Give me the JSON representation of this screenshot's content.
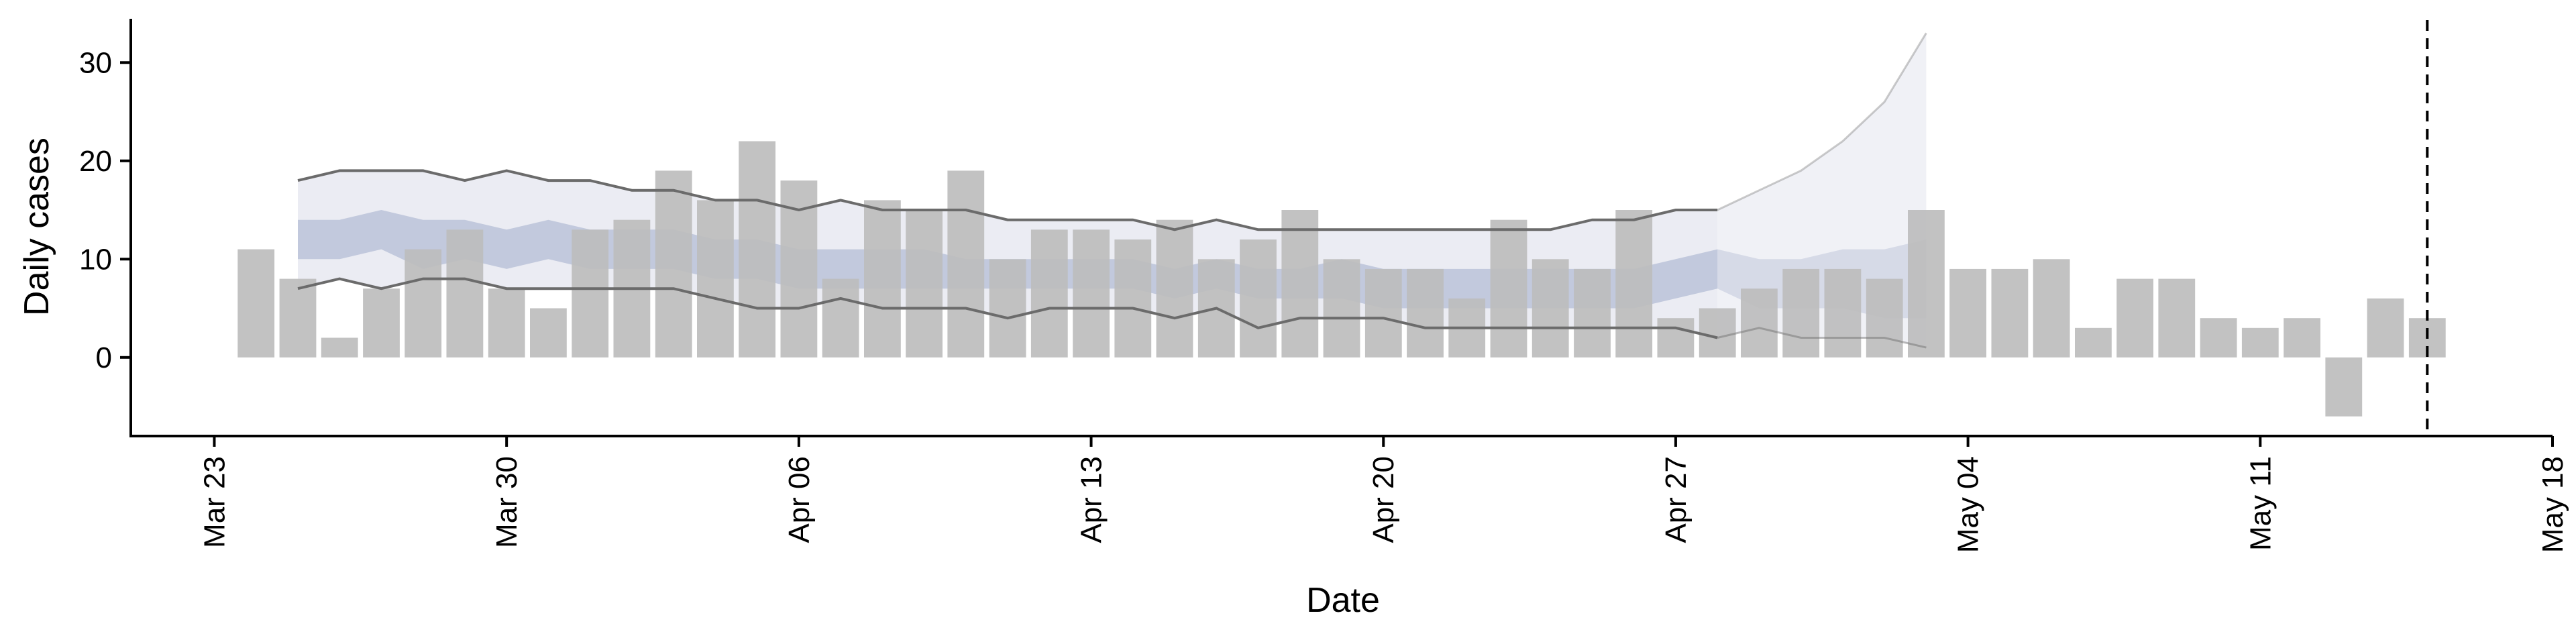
{
  "chart_data": {
    "type": "bar",
    "xlabel": "Date",
    "ylabel": "Daily cases",
    "title": "",
    "x_range": [
      "2020-03-21",
      "2020-05-18"
    ],
    "ylim": [
      -8,
      35
    ],
    "x_ticks": [
      {
        "date": "2020-03-23",
        "label": "Mar 23"
      },
      {
        "date": "2020-03-30",
        "label": "Mar 30"
      },
      {
        "date": "2020-04-06",
        "label": "Apr 06"
      },
      {
        "date": "2020-04-13",
        "label": "Apr 13"
      },
      {
        "date": "2020-04-20",
        "label": "Apr 20"
      },
      {
        "date": "2020-04-27",
        "label": "Apr 27"
      },
      {
        "date": "2020-05-04",
        "label": "May 04"
      },
      {
        "date": "2020-05-11",
        "label": "May 11"
      },
      {
        "date": "2020-05-18",
        "label": "May 18"
      }
    ],
    "y_ticks": [
      0,
      10,
      20,
      30
    ],
    "grid": false,
    "bars": {
      "color": "#bdbdbd",
      "start_date": "2020-03-24",
      "values": [
        11,
        8,
        2,
        7,
        11,
        13,
        7,
        5,
        13,
        14,
        19,
        16,
        22,
        18,
        8,
        16,
        15,
        19,
        10,
        13,
        13,
        12,
        14,
        10,
        12,
        15,
        10,
        9,
        9,
        6,
        14,
        10,
        9,
        15,
        4,
        5,
        7,
        9,
        9,
        8,
        15,
        9,
        9,
        10,
        3,
        8,
        8,
        4,
        3,
        4,
        -6,
        6,
        4
      ]
    },
    "forecast": {
      "start_date": "2020-03-25",
      "upper_line": [
        18,
        19,
        19,
        19,
        18,
        19,
        18,
        18,
        17,
        17,
        16,
        16,
        15,
        16,
        15,
        15,
        15,
        14,
        14,
        14,
        14,
        13,
        14,
        13,
        13,
        13,
        13,
        13,
        13,
        13,
        13,
        14,
        14,
        15,
        15
      ],
      "lower_line": [
        7,
        8,
        7,
        8,
        8,
        7,
        7,
        7,
        7,
        7,
        6,
        5,
        5,
        6,
        5,
        5,
        5,
        4,
        5,
        5,
        5,
        4,
        5,
        3,
        4,
        4,
        4,
        3,
        3,
        3,
        3,
        3,
        3,
        3,
        2
      ],
      "inner_upper": [
        14,
        14,
        15,
        14,
        14,
        13,
        14,
        13,
        13,
        13,
        12,
        12,
        11,
        11,
        11,
        11,
        10,
        10,
        10,
        10,
        10,
        9,
        10,
        9,
        9,
        10,
        9,
        9,
        9,
        9,
        9,
        9,
        9,
        10,
        11
      ],
      "inner_lower": [
        10,
        10,
        11,
        9,
        10,
        9,
        10,
        9,
        9,
        9,
        8,
        8,
        7,
        7,
        7,
        7,
        7,
        7,
        7,
        7,
        7,
        6,
        7,
        6,
        6,
        6,
        5,
        5,
        5,
        5,
        5,
        5,
        5,
        6,
        7
      ],
      "extension_start_date": "2020-04-28",
      "ext_upper_line": [
        15,
        17,
        19,
        22,
        26,
        33
      ],
      "ext_lower_line": [
        2,
        3,
        2,
        2,
        2,
        1
      ],
      "ext_inner_upper": [
        11,
        10,
        10,
        11,
        11,
        12
      ],
      "ext_inner_lower": [
        7,
        5,
        5,
        5,
        4,
        4
      ],
      "outer_band_color": "#e4e6ef",
      "inner_band_color": "#b0bad3",
      "line_color": "#6b6b6b"
    },
    "vertical_line": {
      "date": "2020-05-15",
      "style": "dashed",
      "color": "#000000"
    }
  }
}
